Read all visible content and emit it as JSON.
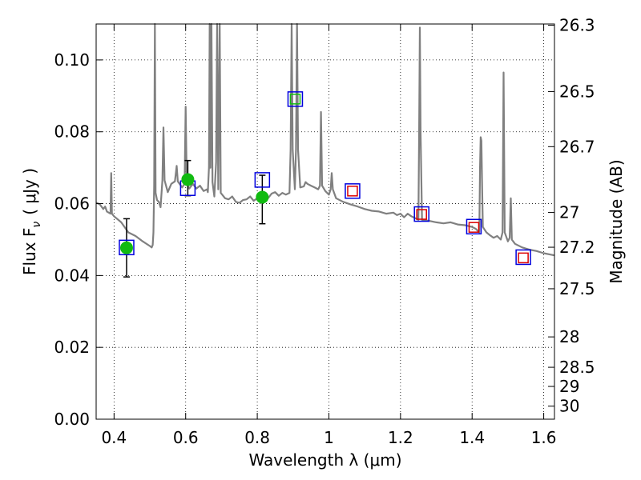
{
  "chart_data": {
    "type": "scatter",
    "xlabel": "Wavelength  λ (μm)",
    "ylabel": "Flux  F",
    "ylabel_sub": "ν",
    "ylabel_unit": "( μJy )",
    "y2label": "Magnitude (AB)",
    "xlim": [
      0.35,
      1.63
    ],
    "ylim": [
      0.0,
      0.11
    ],
    "grid": true,
    "x_ticks": [
      {
        "value": 0.4,
        "label": "0.4"
      },
      {
        "value": 0.6,
        "label": "0.6"
      },
      {
        "value": 0.8,
        "label": "0.8"
      },
      {
        "value": 1.0,
        "label": "1"
      },
      {
        "value": 1.2,
        "label": "1.2"
      },
      {
        "value": 1.4,
        "label": "1.4"
      },
      {
        "value": 1.6,
        "label": "1.6"
      }
    ],
    "y_ticks": [
      {
        "value": 0.0,
        "label": "0.00"
      },
      {
        "value": 0.02,
        "label": "0.02"
      },
      {
        "value": 0.04,
        "label": "0.04"
      },
      {
        "value": 0.06,
        "label": "0.06"
      },
      {
        "value": 0.08,
        "label": "0.08"
      },
      {
        "value": 0.1,
        "label": "0.10"
      }
    ],
    "y2_ticks": [
      {
        "value": 26.3,
        "label": "26.3"
      },
      {
        "value": 26.5,
        "label": "26.5"
      },
      {
        "value": 26.7,
        "label": "26.7"
      },
      {
        "value": 27.0,
        "label": "27"
      },
      {
        "value": 27.2,
        "label": "27.2"
      },
      {
        "value": 27.5,
        "label": "27.5"
      },
      {
        "value": 28.0,
        "label": "28"
      },
      {
        "value": 28.5,
        "label": "28.5"
      },
      {
        "value": 29.0,
        "label": "29"
      },
      {
        "value": 30.0,
        "label": "30"
      }
    ],
    "series": [
      {
        "kind": "model-spectrum",
        "color": "#808080",
        "points": [
          [
            0.35,
            0.0603
          ],
          [
            0.36,
            0.0598
          ],
          [
            0.37,
            0.0585
          ],
          [
            0.375,
            0.0592
          ],
          [
            0.38,
            0.0578
          ],
          [
            0.39,
            0.0572
          ],
          [
            0.392,
            0.0685
          ],
          [
            0.394,
            0.0572
          ],
          [
            0.4,
            0.0565
          ],
          [
            0.42,
            0.0548
          ],
          [
            0.44,
            0.052
          ],
          [
            0.46,
            0.051
          ],
          [
            0.48,
            0.0495
          ],
          [
            0.5,
            0.0482
          ],
          [
            0.505,
            0.0478
          ],
          [
            0.508,
            0.0485
          ],
          [
            0.51,
            0.052
          ],
          [
            0.512,
            0.065
          ],
          [
            0.514,
            0.11
          ],
          [
            0.516,
            0.063
          ],
          [
            0.52,
            0.061
          ],
          [
            0.525,
            0.0605
          ],
          [
            0.53,
            0.059
          ],
          [
            0.535,
            0.0665
          ],
          [
            0.538,
            0.0812
          ],
          [
            0.541,
            0.0665
          ],
          [
            0.55,
            0.0632
          ],
          [
            0.56,
            0.0655
          ],
          [
            0.57,
            0.0662
          ],
          [
            0.575,
            0.0705
          ],
          [
            0.578,
            0.0662
          ],
          [
            0.59,
            0.0645
          ],
          [
            0.597,
            0.0655
          ],
          [
            0.6,
            0.087
          ],
          [
            0.603,
            0.0655
          ],
          [
            0.61,
            0.0642
          ],
          [
            0.62,
            0.0655
          ],
          [
            0.63,
            0.0642
          ],
          [
            0.64,
            0.065
          ],
          [
            0.65,
            0.0635
          ],
          [
            0.66,
            0.064
          ],
          [
            0.662,
            0.0632
          ],
          [
            0.665,
            0.07
          ],
          [
            0.667,
            0.11
          ],
          [
            0.669,
            0.07
          ],
          [
            0.672,
            0.11
          ],
          [
            0.675,
            0.066
          ],
          [
            0.68,
            0.062
          ],
          [
            0.685,
            0.0715
          ],
          [
            0.688,
            0.11
          ],
          [
            0.691,
            0.064
          ],
          [
            0.695,
            0.11
          ],
          [
            0.698,
            0.063
          ],
          [
            0.71,
            0.0615
          ],
          [
            0.72,
            0.0612
          ],
          [
            0.73,
            0.062
          ],
          [
            0.74,
            0.0605
          ],
          [
            0.75,
            0.0602
          ],
          [
            0.76,
            0.061
          ],
          [
            0.77,
            0.0612
          ],
          [
            0.78,
            0.062
          ],
          [
            0.79,
            0.0608
          ],
          [
            0.8,
            0.0615
          ],
          [
            0.81,
            0.0622
          ],
          [
            0.82,
            0.0625
          ],
          [
            0.83,
            0.0615
          ],
          [
            0.84,
            0.0628
          ],
          [
            0.85,
            0.0632
          ],
          [
            0.86,
            0.0622
          ],
          [
            0.87,
            0.063
          ],
          [
            0.88,
            0.0625
          ],
          [
            0.89,
            0.063
          ],
          [
            0.893,
            0.075
          ],
          [
            0.896,
            0.11
          ],
          [
            0.899,
            0.075
          ],
          [
            0.905,
            0.064
          ],
          [
            0.908,
            0.075
          ],
          [
            0.911,
            0.11
          ],
          [
            0.914,
            0.075
          ],
          [
            0.92,
            0.0645
          ],
          [
            0.93,
            0.0648
          ],
          [
            0.935,
            0.066
          ],
          [
            0.94,
            0.0655
          ],
          [
            0.95,
            0.065
          ],
          [
            0.96,
            0.0645
          ],
          [
            0.97,
            0.064
          ],
          [
            0.975,
            0.065
          ],
          [
            0.978,
            0.0855
          ],
          [
            0.981,
            0.065
          ],
          [
            0.99,
            0.0635
          ],
          [
            1.0,
            0.0625
          ],
          [
            1.005,
            0.064
          ],
          [
            1.008,
            0.0685
          ],
          [
            1.011,
            0.064
          ],
          [
            1.02,
            0.0615
          ],
          [
            1.04,
            0.0605
          ],
          [
            1.06,
            0.0598
          ],
          [
            1.08,
            0.0592
          ],
          [
            1.1,
            0.0585
          ],
          [
            1.12,
            0.058
          ],
          [
            1.14,
            0.0578
          ],
          [
            1.16,
            0.0572
          ],
          [
            1.18,
            0.0575
          ],
          [
            1.19,
            0.0568
          ],
          [
            1.2,
            0.0572
          ],
          [
            1.21,
            0.0562
          ],
          [
            1.22,
            0.0572
          ],
          [
            1.23,
            0.0565
          ],
          [
            1.24,
            0.056
          ],
          [
            1.25,
            0.0555
          ],
          [
            1.252,
            0.08
          ],
          [
            1.254,
            0.109
          ],
          [
            1.256,
            0.08
          ],
          [
            1.26,
            0.0555
          ],
          [
            1.28,
            0.0552
          ],
          [
            1.3,
            0.0548
          ],
          [
            1.32,
            0.0545
          ],
          [
            1.34,
            0.0548
          ],
          [
            1.36,
            0.0542
          ],
          [
            1.38,
            0.054
          ],
          [
            1.4,
            0.0535
          ],
          [
            1.41,
            0.053
          ],
          [
            1.42,
            0.052
          ],
          [
            1.422,
            0.07
          ],
          [
            1.424,
            0.0785
          ],
          [
            1.426,
            0.0775
          ],
          [
            1.428,
            0.065
          ],
          [
            1.43,
            0.0535
          ],
          [
            1.44,
            0.052
          ],
          [
            1.45,
            0.0512
          ],
          [
            1.46,
            0.0505
          ],
          [
            1.47,
            0.051
          ],
          [
            1.48,
            0.05
          ],
          [
            1.485,
            0.052
          ],
          [
            1.488,
            0.0965
          ],
          [
            1.491,
            0.052
          ],
          [
            1.5,
            0.0495
          ],
          [
            1.505,
            0.0505
          ],
          [
            1.508,
            0.0615
          ],
          [
            1.511,
            0.05
          ],
          [
            1.52,
            0.0488
          ],
          [
            1.54,
            0.0478
          ],
          [
            1.56,
            0.0472
          ],
          [
            1.58,
            0.0468
          ],
          [
            1.6,
            0.0462
          ],
          [
            1.62,
            0.0458
          ],
          [
            1.63,
            0.0456
          ]
        ]
      },
      {
        "kind": "observed",
        "color": "#11bb11",
        "points": [
          {
            "x": 0.435,
            "y": 0.0477,
            "err_low": 0.0396,
            "err_high": 0.0558
          },
          {
            "x": 0.606,
            "y": 0.0667,
            "err_low": 0.0622,
            "err_high": 0.072
          },
          {
            "x": 0.814,
            "y": 0.0618,
            "err_low": 0.0544,
            "err_high": 0.0679
          }
        ]
      },
      {
        "kind": "model-band-blue",
        "color": "#0000dd",
        "points": [
          {
            "x": 0.435,
            "y": 0.0478
          },
          {
            "x": 0.606,
            "y": 0.0643
          },
          {
            "x": 0.814,
            "y": 0.0666
          },
          {
            "x": 0.906,
            "y": 0.0891
          },
          {
            "x": 1.066,
            "y": 0.0635
          },
          {
            "x": 1.259,
            "y": 0.0571
          },
          {
            "x": 1.405,
            "y": 0.0536
          },
          {
            "x": 1.543,
            "y": 0.0451
          }
        ]
      },
      {
        "kind": "model-band-red",
        "color": "#dd0000",
        "points": [
          {
            "x": 1.066,
            "y": 0.0635
          },
          {
            "x": 1.259,
            "y": 0.057
          },
          {
            "x": 1.405,
            "y": 0.0534
          },
          {
            "x": 1.543,
            "y": 0.0449
          }
        ]
      },
      {
        "kind": "model-band-green",
        "color": "#11bb11",
        "points": [
          {
            "x": 0.906,
            "y": 0.0891
          }
        ]
      }
    ]
  }
}
